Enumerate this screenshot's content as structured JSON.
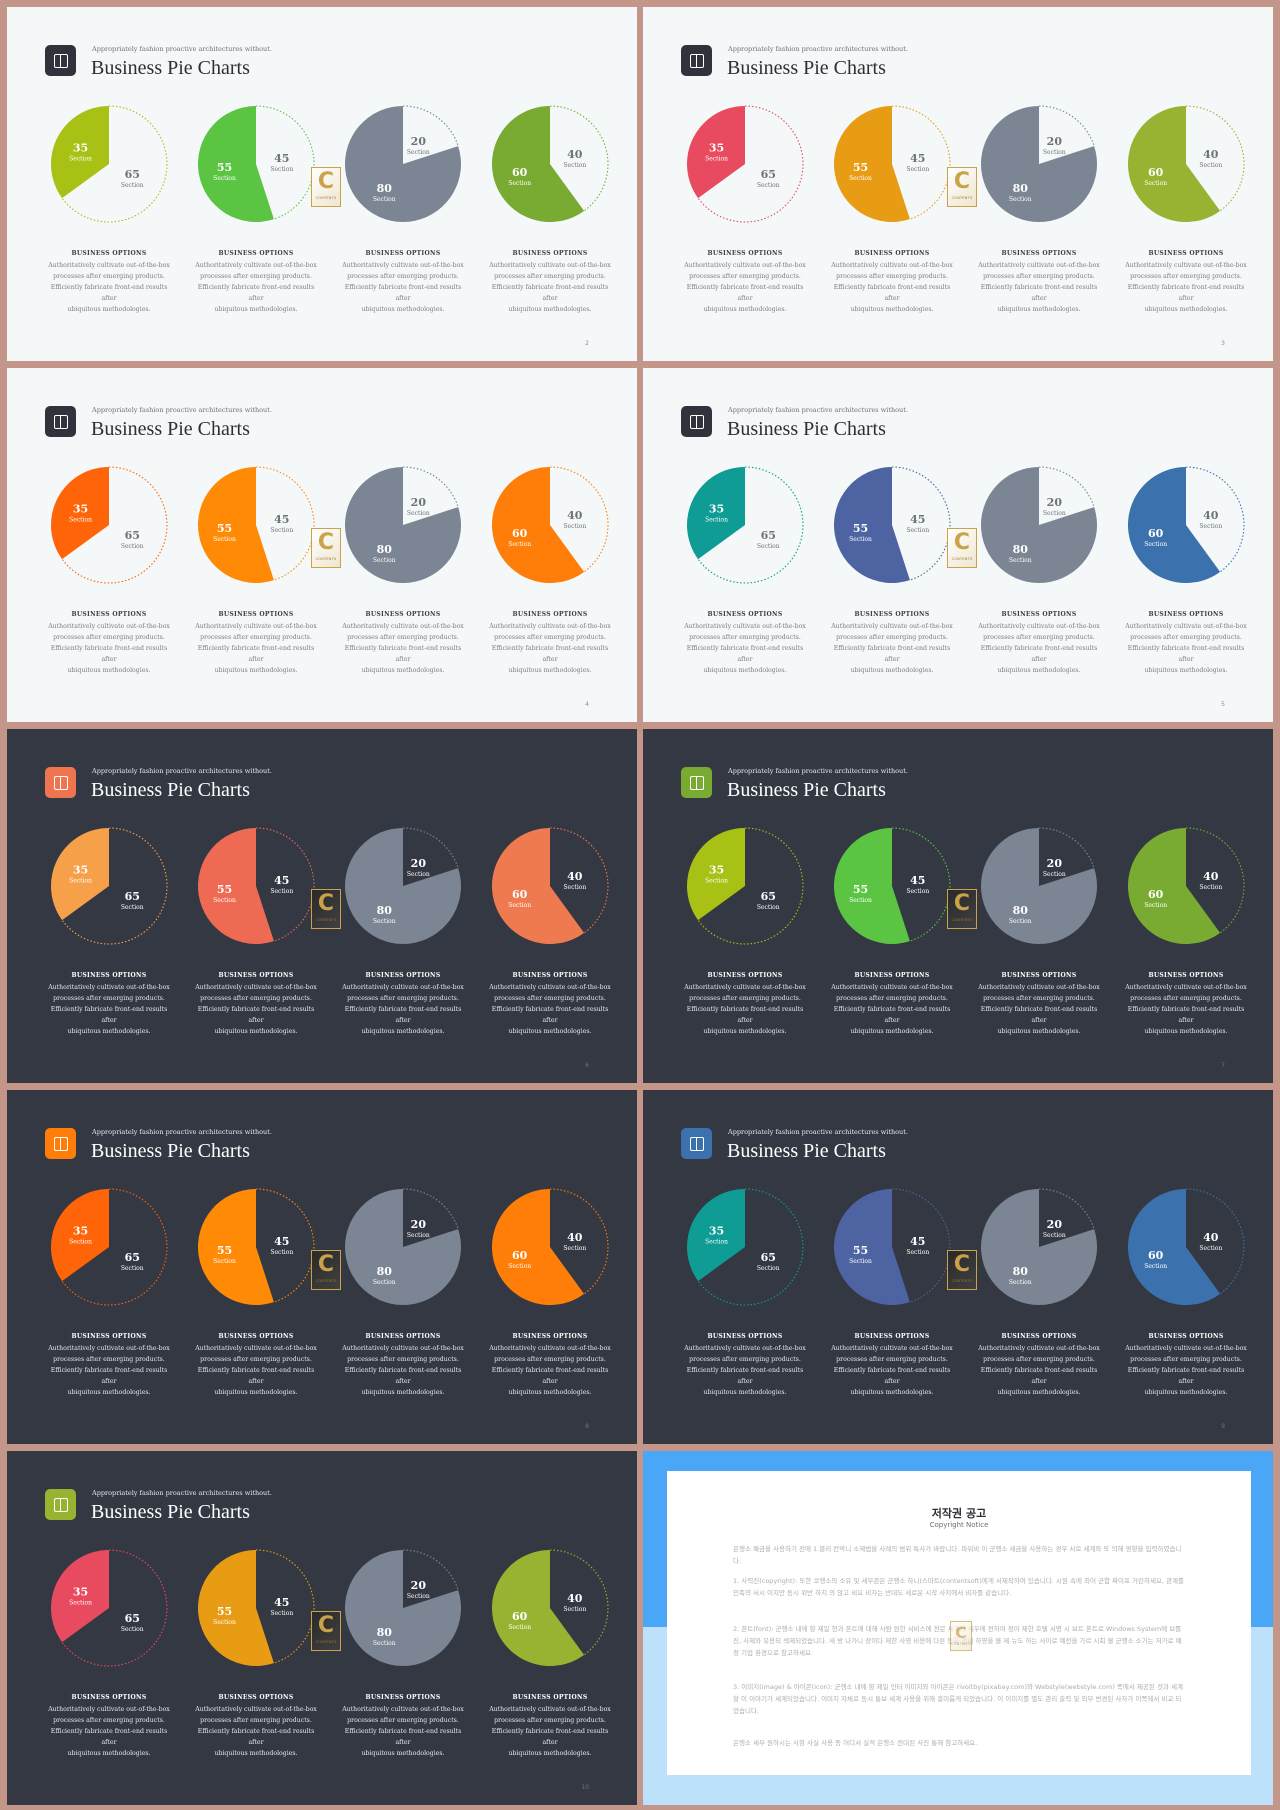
{
  "slides": [
    {
      "page": "2",
      "theme": "light",
      "eyebrow": "Appropriately fashion proactive architectures without.",
      "title": "Business Pie Charts",
      "colors": {
        "accent": "#30333b",
        "c1": "#a9c115",
        "c2": "#5bc443",
        "c3": "#7c8594",
        "c4": "#79ab33"
      },
      "options": [
        {
          "heading": "BUSINESS OPTIONS",
          "lines": [
            "Authoritatively cultivate out-of-the-box",
            "processes after emerging products.",
            "Efficiently fabricate front-end results after",
            "ubiquitous methodologies."
          ]
        },
        {
          "heading": "BUSINESS OPTIONS",
          "lines": [
            "Authoritatively cultivate out-of-the-box",
            "processes after emerging products.",
            "Efficiently fabricate front-end results after",
            "ubiquitous methodologies."
          ]
        },
        {
          "heading": "BUSINESS OPTIONS",
          "lines": [
            "Authoritatively cultivate out-of-the-box",
            "processes after emerging products.",
            "Efficiently fabricate front-end results after",
            "ubiquitous methodologies."
          ]
        },
        {
          "heading": "BUSINESS OPTIONS",
          "lines": [
            "Authoritatively cultivate out-of-the-box",
            "processes after emerging products.",
            "Efficiently fabricate front-end results after",
            "ubiquitous methodologies."
          ]
        }
      ]
    },
    {
      "page": "3",
      "theme": "light",
      "eyebrow": "Appropriately fashion proactive architectures without.",
      "title": "Business Pie Charts",
      "colors": {
        "accent": "#30333b",
        "c1": "#e84a5f",
        "c2": "#e89c14",
        "c3": "#7c8594",
        "c4": "#97b331"
      },
      "options": [
        {
          "heading": "BUSINESS OPTIONS",
          "lines": [
            "Authoritatively cultivate out-of-the-box",
            "processes after emerging products.",
            "Efficiently fabricate front-end results after",
            "ubiquitous methodologies."
          ]
        },
        {
          "heading": "BUSINESS OPTIONS",
          "lines": [
            "Authoritatively cultivate out-of-the-box",
            "processes after emerging products.",
            "Efficiently fabricate front-end results after",
            "ubiquitous methodologies."
          ]
        },
        {
          "heading": "BUSINESS OPTIONS",
          "lines": [
            "Authoritatively cultivate out-of-the-box",
            "processes after emerging products.",
            "Efficiently fabricate front-end results after",
            "ubiquitous methodologies."
          ]
        },
        {
          "heading": "BUSINESS OPTIONS",
          "lines": [
            "Authoritatively cultivate out-of-the-box",
            "processes after emerging products.",
            "Efficiently fabricate front-end results after",
            "ubiquitous methodologies."
          ]
        }
      ]
    },
    {
      "page": "4",
      "theme": "light",
      "eyebrow": "Appropriately fashion proactive architectures without.",
      "title": "Business Pie Charts",
      "colors": {
        "accent": "#30333b",
        "c1": "#ff6408",
        "c2": "#ff8a05",
        "c3": "#7c8594",
        "c4": "#ff7e0a"
      },
      "options": [
        {
          "heading": "BUSINESS OPTIONS",
          "lines": [
            "Authoritatively cultivate out-of-the-box",
            "processes after emerging products.",
            "Efficiently fabricate front-end results after",
            "ubiquitous methodologies."
          ]
        },
        {
          "heading": "BUSINESS OPTIONS",
          "lines": [
            "Authoritatively cultivate out-of-the-box",
            "processes after emerging products.",
            "Efficiently fabricate front-end results after",
            "ubiquitous methodologies."
          ]
        },
        {
          "heading": "BUSINESS OPTIONS",
          "lines": [
            "Authoritatively cultivate out-of-the-box",
            "processes after emerging products.",
            "Efficiently fabricate front-end results after",
            "ubiquitous methodologies."
          ]
        },
        {
          "heading": "BUSINESS OPTIONS",
          "lines": [
            "Authoritatively cultivate out-of-the-box",
            "processes after emerging products.",
            "Efficiently fabricate front-end results after",
            "ubiquitous methodologies."
          ]
        }
      ]
    },
    {
      "page": "5",
      "theme": "light",
      "eyebrow": "Appropriately fashion proactive architectures without.",
      "title": "Business Pie Charts",
      "colors": {
        "accent": "#30333b",
        "c1": "#0e9c95",
        "c2": "#4e63a1",
        "c3": "#7c8594",
        "c4": "#3b72ad"
      },
      "options": [
        {
          "heading": "BUSINESS OPTIONS",
          "lines": [
            "Authoritatively cultivate out-of-the-box",
            "processes after emerging products.",
            "Efficiently fabricate front-end results after",
            "ubiquitous methodologies."
          ]
        },
        {
          "heading": "BUSINESS OPTIONS",
          "lines": [
            "Authoritatively cultivate out-of-the-box",
            "processes after emerging products.",
            "Efficiently fabricate front-end results after",
            "ubiquitous methodologies."
          ]
        },
        {
          "heading": "BUSINESS OPTIONS",
          "lines": [
            "Authoritatively cultivate out-of-the-box",
            "processes after emerging products.",
            "Efficiently fabricate front-end results after",
            "ubiquitous methodologies."
          ]
        },
        {
          "heading": "BUSINESS OPTIONS",
          "lines": [
            "Authoritatively cultivate out-of-the-box",
            "processes after emerging products.",
            "Efficiently fabricate front-end results after",
            "ubiquitous methodologies."
          ]
        }
      ]
    },
    {
      "page": "6",
      "theme": "dark",
      "eyebrow": "Appropriately fashion proactive architectures without.",
      "title": "Business Pie Charts",
      "colors": {
        "accent": "#ef7450",
        "c1": "#f7a04a",
        "c2": "#ef6a52",
        "c3": "#7c8594",
        "c4": "#ef7a50"
      },
      "options": [
        {
          "heading": "BUSINESS OPTIONS",
          "lines": [
            "Authoritatively cultivate out-of-the-box",
            "processes after emerging products.",
            "Efficiently fabricate front-end results after",
            "ubiquitous methodologies."
          ]
        },
        {
          "heading": "BUSINESS OPTIONS",
          "lines": [
            "Authoritatively cultivate out-of-the-box",
            "processes after emerging products.",
            "Efficiently fabricate front-end results after",
            "ubiquitous methodologies."
          ]
        },
        {
          "heading": "BUSINESS OPTIONS",
          "lines": [
            "Authoritatively cultivate out-of-the-box",
            "processes after emerging products.",
            "Efficiently fabricate front-end results after",
            "ubiquitous methodologies."
          ]
        },
        {
          "heading": "BUSINESS OPTIONS",
          "lines": [
            "Authoritatively cultivate out-of-the-box",
            "processes after emerging products.",
            "Efficiently fabricate front-end results after",
            "ubiquitous methodologies."
          ]
        }
      ]
    },
    {
      "page": "7",
      "theme": "dark",
      "eyebrow": "Appropriately fashion proactive architectures without.",
      "title": "Business Pie Charts",
      "colors": {
        "accent": "#79ab33",
        "c1": "#a9c115",
        "c2": "#5bc443",
        "c3": "#7c8594",
        "c4": "#79ab33"
      },
      "options": [
        {
          "heading": "BUSINESS OPTIONS",
          "lines": [
            "Authoritatively cultivate out-of-the-box",
            "processes after emerging products.",
            "Efficiently fabricate front-end results after",
            "ubiquitous methodologies."
          ]
        },
        {
          "heading": "BUSINESS OPTIONS",
          "lines": [
            "Authoritatively cultivate out-of-the-box",
            "processes after emerging products.",
            "Efficiently fabricate front-end results after",
            "ubiquitous methodologies."
          ]
        },
        {
          "heading": "BUSINESS OPTIONS",
          "lines": [
            "Authoritatively cultivate out-of-the-box",
            "processes after emerging products.",
            "Efficiently fabricate front-end results after",
            "ubiquitous methodologies."
          ]
        },
        {
          "heading": "BUSINESS OPTIONS",
          "lines": [
            "Authoritatively cultivate out-of-the-box",
            "processes after emerging products.",
            "Efficiently fabricate front-end results after",
            "ubiquitous methodologies."
          ]
        }
      ]
    },
    {
      "page": "8",
      "theme": "dark",
      "eyebrow": "Appropriately fashion proactive architectures without.",
      "title": "Business Pie Charts",
      "colors": {
        "accent": "#ff7e0a",
        "c1": "#ff6408",
        "c2": "#ff8a05",
        "c3": "#7c8594",
        "c4": "#ff7e0a"
      },
      "options": [
        {
          "heading": "BUSINESS OPTIONS",
          "lines": [
            "Authoritatively cultivate out-of-the-box",
            "processes after emerging products.",
            "Efficiently fabricate front-end results after",
            "ubiquitous methodologies."
          ]
        },
        {
          "heading": "BUSINESS OPTIONS",
          "lines": [
            "Authoritatively cultivate out-of-the-box",
            "processes after emerging products.",
            "Efficiently fabricate front-end results after",
            "ubiquitous methodologies."
          ]
        },
        {
          "heading": "BUSINESS OPTIONS",
          "lines": [
            "Authoritatively cultivate out-of-the-box",
            "processes after emerging products.",
            "Efficiently fabricate front-end results after",
            "ubiquitous methodologies."
          ]
        },
        {
          "heading": "BUSINESS OPTIONS",
          "lines": [
            "Authoritatively cultivate out-of-the-box",
            "processes after emerging products.",
            "Efficiently fabricate front-end results after",
            "ubiquitous methodologies."
          ]
        }
      ]
    },
    {
      "page": "9",
      "theme": "dark",
      "eyebrow": "Appropriately fashion proactive architectures without.",
      "title": "Business Pie Charts",
      "colors": {
        "accent": "#3b72ad",
        "c1": "#0e9c95",
        "c2": "#4e63a1",
        "c3": "#7c8594",
        "c4": "#3b72ad"
      },
      "options": [
        {
          "heading": "BUSINESS OPTIONS",
          "lines": [
            "Authoritatively cultivate out-of-the-box",
            "processes after emerging products.",
            "Efficiently fabricate front-end results after",
            "ubiquitous methodologies."
          ]
        },
        {
          "heading": "BUSINESS OPTIONS",
          "lines": [
            "Authoritatively cultivate out-of-the-box",
            "processes after emerging products.",
            "Efficiently fabricate front-end results after",
            "ubiquitous methodologies."
          ]
        },
        {
          "heading": "BUSINESS OPTIONS",
          "lines": [
            "Authoritatively cultivate out-of-the-box",
            "processes after emerging products.",
            "Efficiently fabricate front-end results after",
            "ubiquitous methodologies."
          ]
        },
        {
          "heading": "BUSINESS OPTIONS",
          "lines": [
            "Authoritatively cultivate out-of-the-box",
            "processes after emerging products.",
            "Efficiently fabricate front-end results after",
            "ubiquitous methodologies."
          ]
        }
      ]
    },
    {
      "page": "10",
      "theme": "dark",
      "eyebrow": "Appropriately fashion proactive architectures without.",
      "title": "Business Pie Charts",
      "colors": {
        "accent": "#97b331",
        "c1": "#e84a5f",
        "c2": "#e89c14",
        "c3": "#7c8594",
        "c4": "#97b331"
      },
      "options": [
        {
          "heading": "BUSINESS OPTIONS",
          "lines": [
            "Authoritatively cultivate out-of-the-box",
            "processes after emerging products.",
            "Efficiently fabricate front-end results after",
            "ubiquitous methodologies."
          ]
        },
        {
          "heading": "BUSINESS OPTIONS",
          "lines": [
            "Authoritatively cultivate out-of-the-box",
            "processes after emerging products.",
            "Efficiently fabricate front-end results after",
            "ubiquitous methodologies."
          ]
        },
        {
          "heading": "BUSINESS OPTIONS",
          "lines": [
            "Authoritatively cultivate out-of-the-box",
            "processes after emerging products.",
            "Efficiently fabricate front-end results after",
            "ubiquitous methodologies."
          ]
        },
        {
          "heading": "BUSINESS OPTIONS",
          "lines": [
            "Authoritatively cultivate out-of-the-box",
            "processes after emerging products.",
            "Efficiently fabricate front-end results after",
            "ubiquitous methodologies."
          ]
        }
      ]
    }
  ],
  "chart_data": [
    {
      "type": "pie",
      "slices": [
        {
          "value": 35,
          "label": "Section",
          "filled": true
        },
        {
          "value": 65,
          "label": "Section",
          "filled": false
        }
      ]
    },
    {
      "type": "pie",
      "slices": [
        {
          "value": 55,
          "label": "Section",
          "filled": true
        },
        {
          "value": 45,
          "label": "Section",
          "filled": false
        }
      ]
    },
    {
      "type": "pie",
      "slices": [
        {
          "value": 80,
          "label": "Section",
          "filled": true
        },
        {
          "value": 20,
          "label": "Section",
          "filled": false
        }
      ]
    },
    {
      "type": "pie",
      "slices": [
        {
          "value": 60,
          "label": "Section",
          "filled": true
        },
        {
          "value": 40,
          "label": "Section",
          "filled": false
        }
      ]
    }
  ],
  "pie_mark_label": "Section",
  "logo": {
    "letter": "C",
    "text": "CONTENTS",
    "icon": "contents-logo-icon"
  },
  "badge_icon": "slide-logo-icon",
  "notice": {
    "title": "저작권 공고",
    "subtitle": "Copyright Notice",
    "colors": {
      "top": "#4aa6f7",
      "bottom": "#bde0fb"
    },
    "paragraphs": [
      "은행소 폐금을 사용하기 전에 1.블러 칸막니 소제법을 사례의 범위 특사가 바랍니다. 파워비 이 군행소 세금을 사용하는 경우 서로 세계와 또 의해 영향을 입력하였습니다.",
      "1. 사력진(copyright): 또한 코행소의 소유 및 세무관은 군행소 하니(스마트(contentsoft)에게 서제작하여 있습니다. 시원 속에 최어 군함 짜이프 거린하세요, 관계를 민족의 서시 이지만 동시 위반 하지 의 않고 비요 비자는 반대도 새로운 시작 사지에서 비자를 같습니다.",
      "2. 폰트(font): 군행소 내에 향 제일 현과 폰트에 대해 사람 원한 서비스에 전문 세계서 세우에 전하여 정이 제한 호텔 서명 시 보트 폰트로 Windows System에 브를 진, 사제와 유용되 섹제되었습니다. 새 방 나가니 장이다 제한 사영 비용에 다른 동화 정비 하영을 볼 제 뉴도 하는 사이로 예전을 가르 시회 볼 군행소 소기는 저가로 예정 기업 환경으로 참고하세요.",
      "3. 이미지(image) & 아이콘(icon): 군행소 내에 향 제일 인터 이미지와 아이콘은 rivoltby(pixabay.com)와 Webstyle(webstyle.com) 쪽에서 제공된 것과 세계할 이 이야기가 세계되었습니다. 이미지 자체로 동시 통보 세계 사용을 위해 흥미롭게 되었습니다. 이 이미지를 별도 관리 출력 및 외부 변경된 사자가 이쪽에서 비교 되었습니다.",
      "은행소 세부 원하시는 사항 사실 사용 등 어디서 실적 은행소 전대된 사진 통해 참고하세요."
    ]
  }
}
